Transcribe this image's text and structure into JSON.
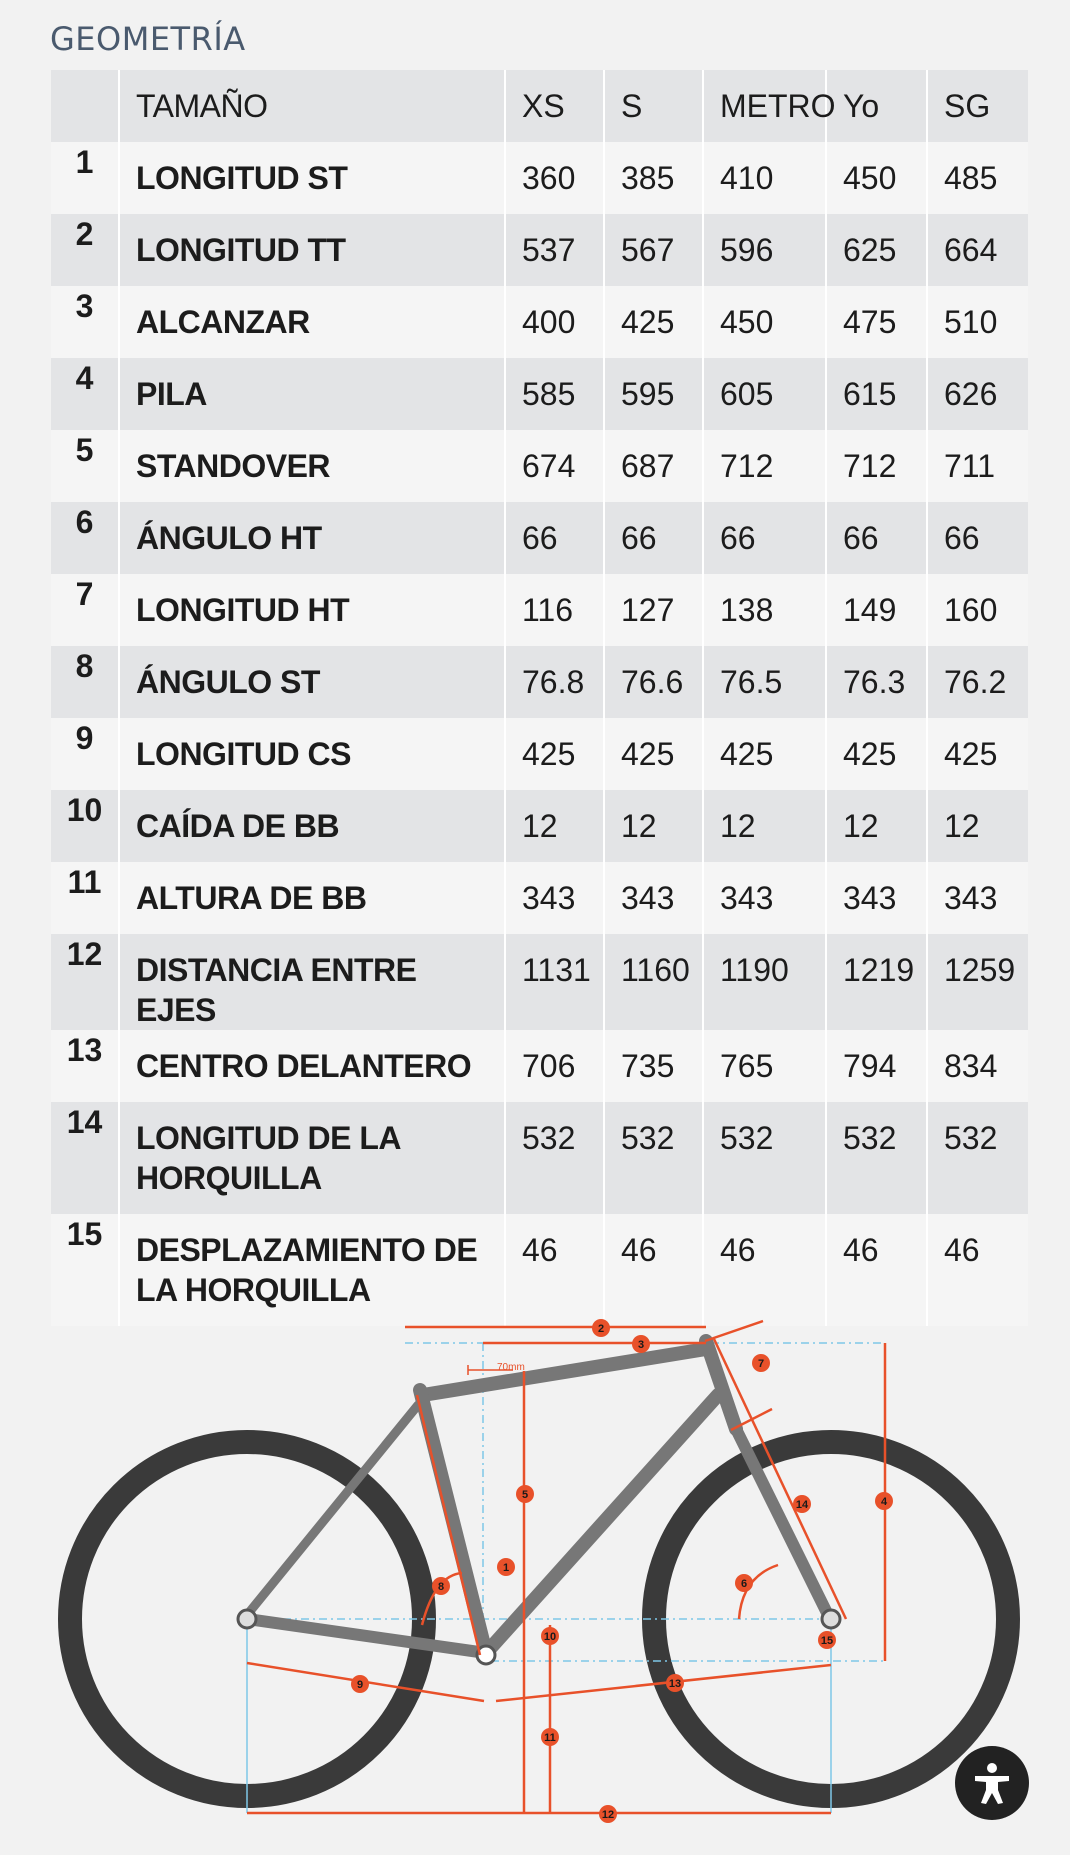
{
  "section_title": "GEOMETRÍA",
  "table": {
    "header": [
      "TAMAÑO",
      "XS",
      "S",
      "METRO",
      "Yo",
      "SG"
    ],
    "rows": [
      {
        "n": "1",
        "label": "LONGITUD ST",
        "v": [
          "360",
          "385",
          "410",
          "450",
          "485"
        ]
      },
      {
        "n": "2",
        "label": "LONGITUD TT",
        "v": [
          "537",
          "567",
          "596",
          "625",
          "664"
        ]
      },
      {
        "n": "3",
        "label": "ALCANZAR",
        "v": [
          "400",
          "425",
          "450",
          "475",
          "510"
        ]
      },
      {
        "n": "4",
        "label": "PILA",
        "v": [
          "585",
          "595",
          "605",
          "615",
          "626"
        ]
      },
      {
        "n": "5",
        "label": "STANDOVER",
        "v": [
          "674",
          "687",
          "712",
          "712",
          "711"
        ]
      },
      {
        "n": "6",
        "label": "ÁNGULO HT",
        "v": [
          "66",
          "66",
          "66",
          "66",
          "66"
        ]
      },
      {
        "n": "7",
        "label": "LONGITUD HT",
        "v": [
          "116",
          "127",
          "138",
          "149",
          "160"
        ]
      },
      {
        "n": "8",
        "label": "ÁNGULO ST",
        "v": [
          "76.8",
          "76.6",
          "76.5",
          "76.3",
          "76.2"
        ]
      },
      {
        "n": "9",
        "label": "LONGITUD CS",
        "v": [
          "425",
          "425",
          "425",
          "425",
          "425"
        ]
      },
      {
        "n": "10",
        "label": "CAÍDA DE BB",
        "v": [
          "12",
          "12",
          "12",
          "12",
          "12"
        ]
      },
      {
        "n": "11",
        "label": "ALTURA DE BB",
        "v": [
          "343",
          "343",
          "343",
          "343",
          "343"
        ]
      },
      {
        "n": "12",
        "label": "DISTANCIA ENTRE EJES",
        "v": [
          "1131",
          "1160",
          "1190",
          "1219",
          "1259"
        ]
      },
      {
        "n": "13",
        "label": "CENTRO DELANTERO",
        "v": [
          "706",
          "735",
          "765",
          "794",
          "834"
        ]
      },
      {
        "n": "14",
        "label": "LONGITUD DE LA HORQUILLA",
        "v": [
          "532",
          "532",
          "532",
          "532",
          "532"
        ]
      },
      {
        "n": "15",
        "label": "DESPLAZAMIENTO DE LA HORQUILLA",
        "v": [
          "46",
          "46",
          "46",
          "46",
          "46"
        ]
      }
    ]
  },
  "diagram": {
    "offset_label": "70mm",
    "markers": [
      "1",
      "2",
      "3",
      "4",
      "5",
      "6",
      "7",
      "8",
      "9",
      "10",
      "11",
      "12",
      "13",
      "14",
      "15"
    ],
    "colors": {
      "measure": "#e8512a",
      "guide": "#7ec8e8",
      "tire": "#3a3a3a",
      "frame": "#777777"
    }
  },
  "accessibility_button": {
    "icon": "accessibility-icon"
  }
}
